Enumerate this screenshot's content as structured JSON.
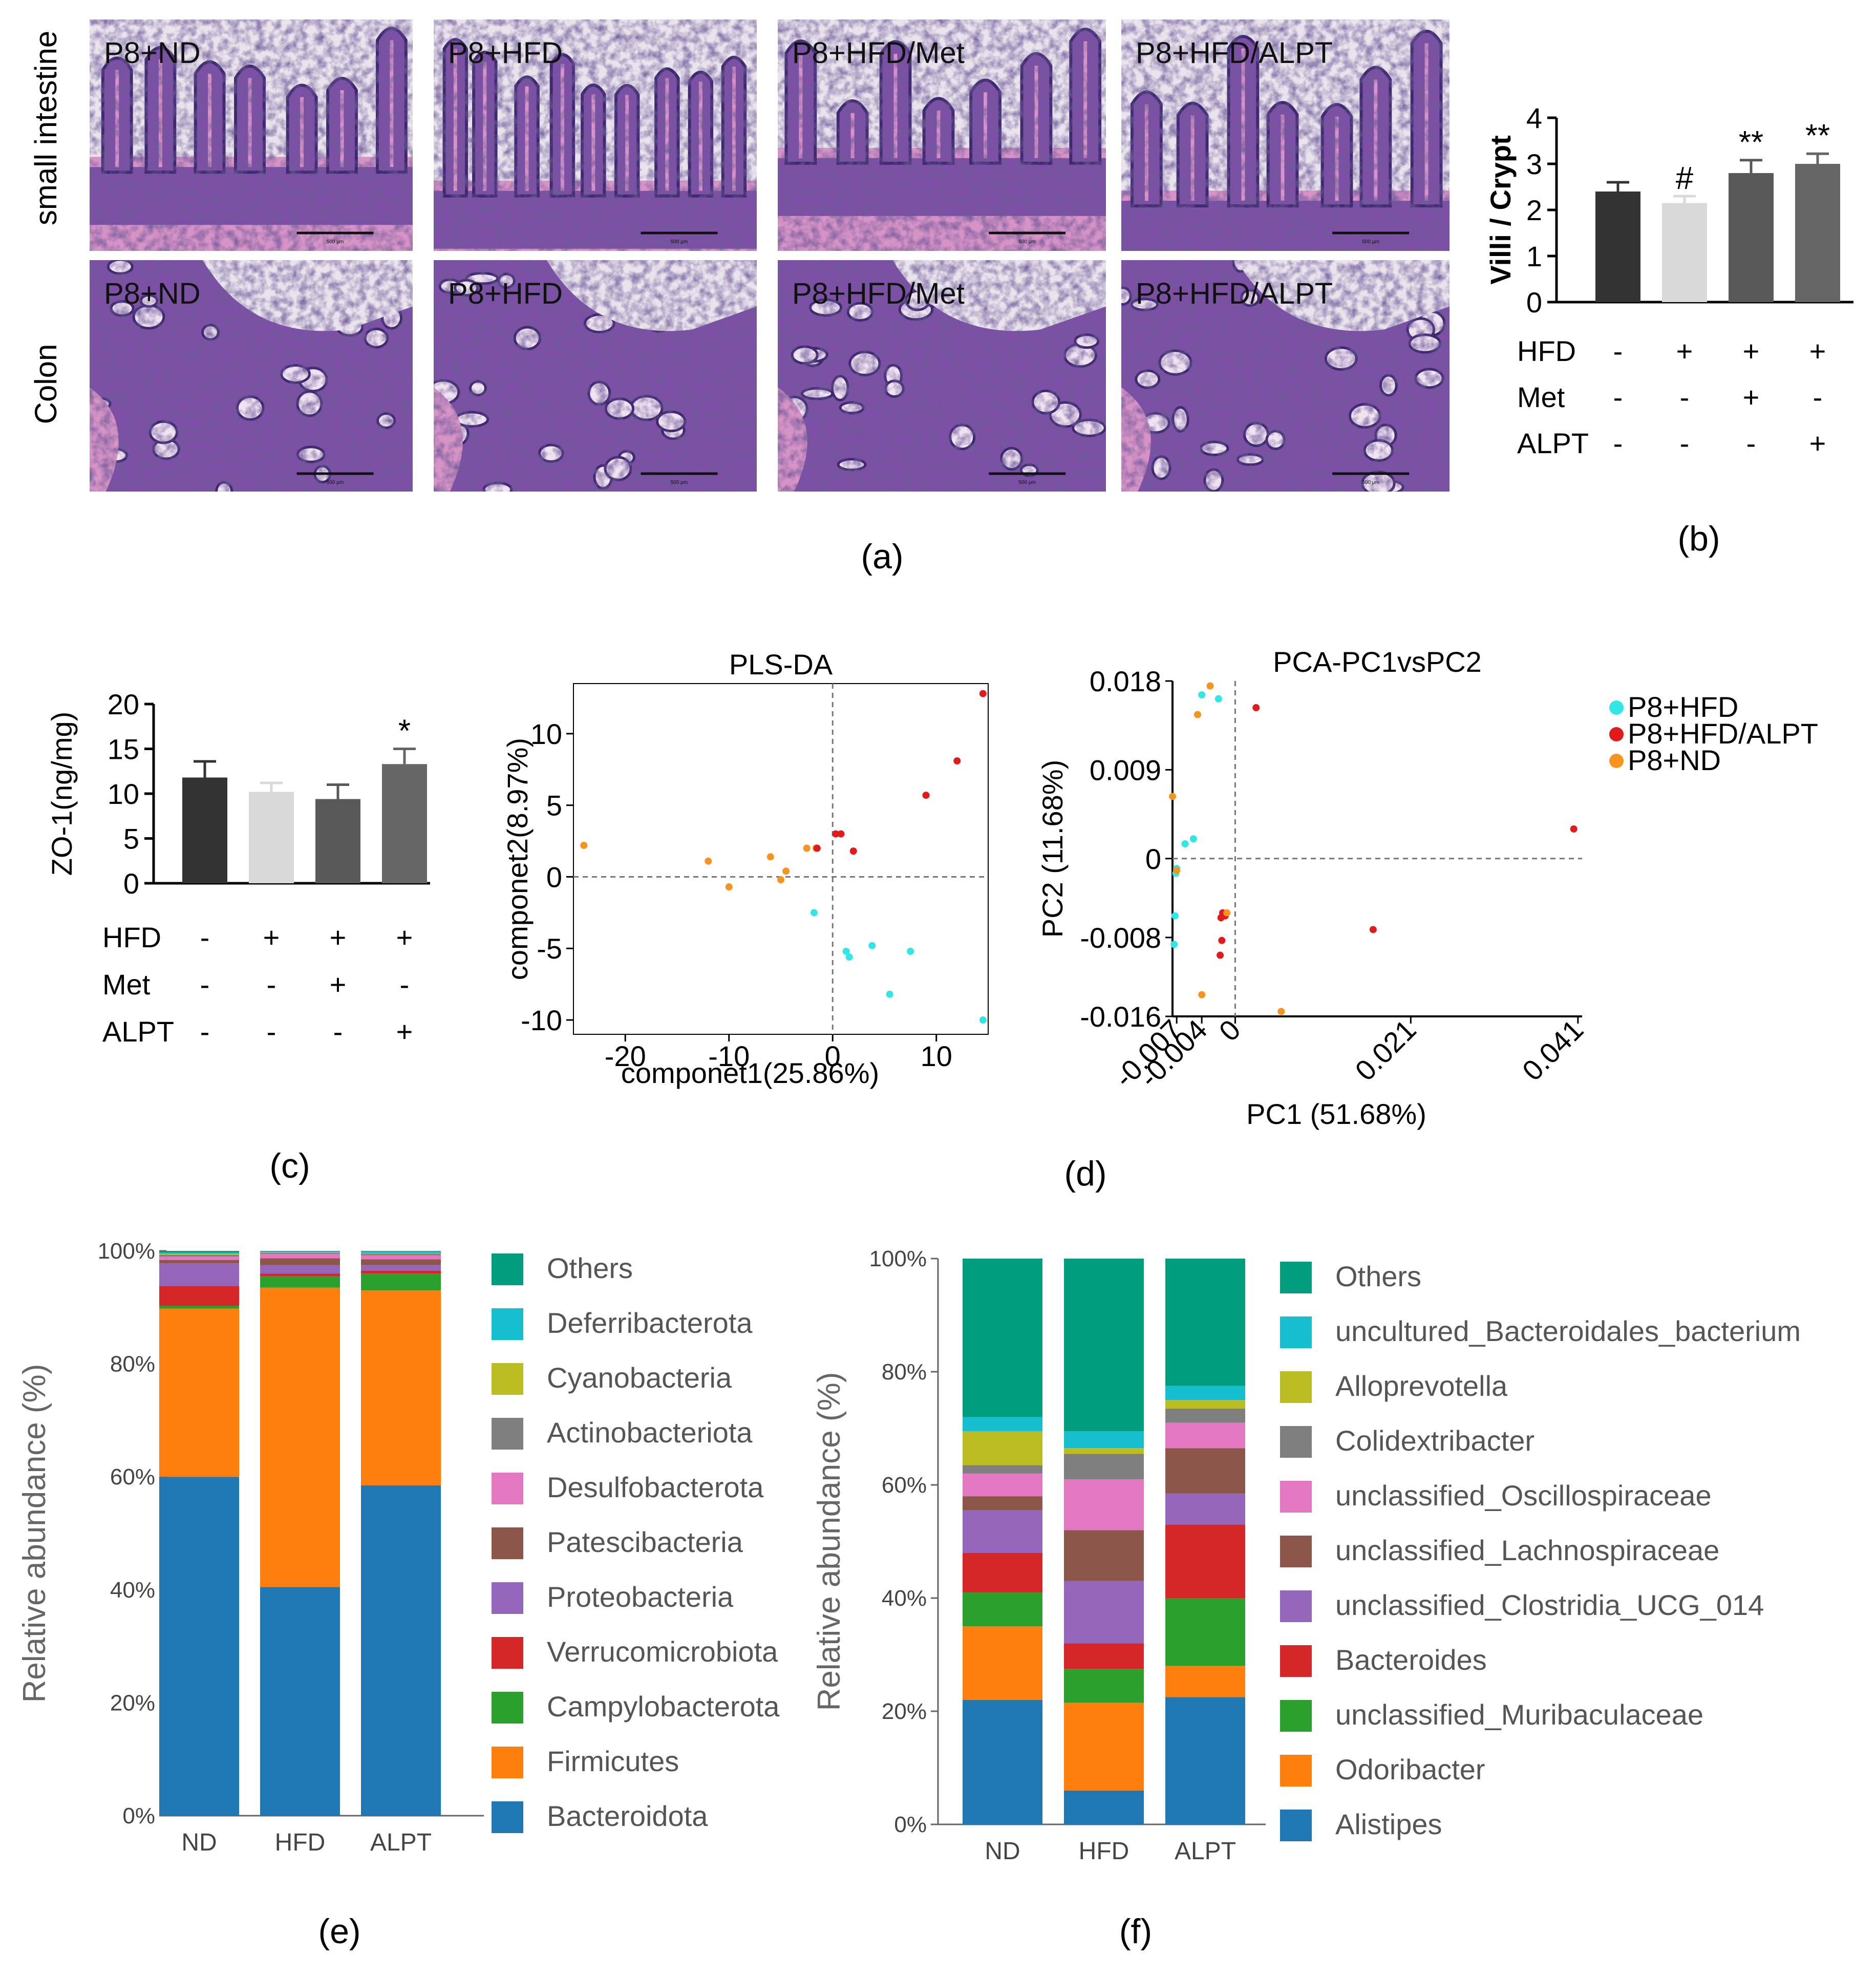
{
  "panel_labels": [
    "(a)",
    "(b)",
    "(c)",
    "(d)",
    "(e)",
    "(f)"
  ],
  "histology": {
    "rows": [
      "small intestine",
      "Colon"
    ],
    "columns": [
      "P8+ND",
      "P8+HFD",
      "P8+HFD/Met",
      "P8+HFD/ALPT"
    ],
    "scale_bar_text": "500 μm",
    "colors": {
      "tissue": "#7d4fa6",
      "nuclei": "#3d2a6e",
      "eosin": "#d693c6",
      "background": "#e9e4ec"
    }
  },
  "treatments": {
    "rows": [
      {
        "name": "HFD",
        "values": [
          "-",
          "+",
          "+",
          "+"
        ]
      },
      {
        "name": "Met",
        "values": [
          "-",
          "-",
          "+",
          "-"
        ]
      },
      {
        "name": "ALPT",
        "values": [
          "-",
          "-",
          "-",
          "+"
        ]
      }
    ]
  },
  "chart_data": [
    {
      "id": "b",
      "type": "bar",
      "ylabel": "Villi / Crypt",
      "ylim": [
        0,
        4
      ],
      "yticks": [
        "0",
        "1",
        "2",
        "3",
        "4"
      ],
      "values": [
        2.4,
        2.15,
        2.8,
        3.0
      ],
      "errors": [
        0.2,
        0.15,
        0.28,
        0.22
      ],
      "significance": [
        "",
        "#",
        "**",
        "**"
      ],
      "colors": [
        "#333333",
        "#d9d9d9",
        "#595959",
        "#666666"
      ]
    },
    {
      "id": "c",
      "type": "bar",
      "ylabel": "ZO-1(ng/mg)",
      "ylim": [
        0,
        20
      ],
      "yticks": [
        "0",
        "5",
        "10",
        "15",
        "20"
      ],
      "values": [
        11.8,
        10.2,
        9.4,
        13.3
      ],
      "errors": [
        1.8,
        1.0,
        1.6,
        1.7
      ],
      "significance": [
        "",
        "",
        "",
        "*"
      ],
      "colors": [
        "#333333",
        "#d9d9d9",
        "#595959",
        "#666666"
      ]
    },
    {
      "id": "d1",
      "type": "scatter",
      "title": "PLS-DA",
      "xlabel": "componet1(25.86%)",
      "ylabel": "componet2(8.97%)",
      "xlim": [
        -25,
        15
      ],
      "ylim": [
        -11,
        13.5
      ],
      "xticks": [
        -20,
        -10,
        0,
        10
      ],
      "yticks": [
        -10,
        -5,
        0,
        5,
        10
      ],
      "groups": [
        {
          "color": "#f7931e",
          "points": [
            [
              -24,
              2.2
            ],
            [
              -12,
              1.1
            ],
            [
              -10,
              -0.7
            ],
            [
              -6,
              1.4
            ],
            [
              -5,
              -0.2
            ],
            [
              -4.5,
              0.4
            ],
            [
              -2.5,
              2
            ],
            [
              -1.6,
              2
            ]
          ]
        },
        {
          "color": "#e31a1c",
          "points": [
            [
              0.3,
              3
            ],
            [
              0.8,
              3
            ],
            [
              2,
              1.8
            ],
            [
              9,
              5.7
            ],
            [
              12,
              8.1
            ],
            [
              14.5,
              12.8
            ],
            [
              -1.5,
              2
            ]
          ]
        },
        {
          "color": "#33e6e6",
          "points": [
            [
              -1.8,
              -2.5
            ],
            [
              1.3,
              -5.2
            ],
            [
              1.6,
              -5.6
            ],
            [
              3.8,
              -4.8
            ],
            [
              7.5,
              -5.2
            ],
            [
              5.5,
              -8.2
            ],
            [
              14.5,
              -10
            ]
          ]
        }
      ]
    },
    {
      "id": "d2",
      "type": "scatter",
      "title": "PCA-PC1vsPC2",
      "xlabel": "PC1 (51.68%)",
      "ylabel": "PC2 (11.68%)",
      "xlim": [
        -0.0075,
        0.0415
      ],
      "ylim": [
        -0.016,
        0.018
      ],
      "xticks": [
        -0.007,
        -0.004,
        0,
        0.021,
        0.041
      ],
      "xtick_labels": [
        "-0.007",
        "-0.004",
        "0",
        "0.021",
        "0.041"
      ],
      "yticks": [
        0.018,
        0.009,
        0,
        -0.008,
        -0.016
      ],
      "ytick_labels": [
        "0.018",
        "0.009",
        "0",
        "-0.008",
        "-0.016"
      ],
      "legend": [
        "P8+HFD",
        "P8+HFD/ALPT",
        "P8+ND"
      ],
      "groups": [
        {
          "name": "P8+HFD",
          "color": "#33e6e6",
          "points": [
            [
              -0.004,
              0.0166
            ],
            [
              -0.002,
              0.0162
            ],
            [
              -0.006,
              0.0015
            ],
            [
              -0.005,
              0.002
            ],
            [
              -0.007,
              -0.001
            ],
            [
              -0.0071,
              -0.0015
            ],
            [
              -0.0072,
              -0.0058
            ],
            [
              -0.0073,
              -0.0087
            ]
          ]
        },
        {
          "name": "P8+HFD/ALPT",
          "color": "#e31a1c",
          "points": [
            [
              0.0025,
              0.0153
            ],
            [
              0.0405,
              0.003
            ],
            [
              0.0165,
              -0.0072
            ],
            [
              -0.0015,
              -0.0055
            ],
            [
              -0.0012,
              -0.0058
            ],
            [
              -0.0017,
              -0.006
            ],
            [
              -0.0016,
              -0.0083
            ],
            [
              -0.0018,
              -0.0098
            ]
          ]
        },
        {
          "name": "P8+ND",
          "color": "#f7931e",
          "points": [
            [
              -0.003,
              0.0175
            ],
            [
              -0.0045,
              0.0146
            ],
            [
              -0.0075,
              0.0063
            ],
            [
              -0.001,
              -0.0055
            ],
            [
              -0.004,
              -0.0138
            ],
            [
              0.0055,
              -0.0155
            ],
            [
              -0.007,
              -0.0012
            ]
          ]
        }
      ]
    },
    {
      "id": "e",
      "type": "stacked_bar",
      "ylabel": "Relative abundance (%)",
      "yticks": [
        "0%",
        "20%",
        "40%",
        "60%",
        "80%",
        "100%"
      ],
      "categories": [
        "ND",
        "HFD",
        "ALPT"
      ],
      "series": [
        {
          "name": "Bacteroidota",
          "color": "#1f77b4",
          "values": [
            60,
            40.5,
            58.5
          ]
        },
        {
          "name": "Firmicutes",
          "color": "#ff7f0e",
          "values": [
            29.8,
            53,
            34.5
          ]
        },
        {
          "name": "Campylobacterota",
          "color": "#2ca02c",
          "values": [
            0.5,
            2,
            3
          ]
        },
        {
          "name": "Verrucomicrobiota",
          "color": "#d62728",
          "values": [
            3.5,
            0.5,
            0.5
          ]
        },
        {
          "name": "Proteobacteria",
          "color": "#9467bd",
          "values": [
            4,
            1.5,
            1
          ]
        },
        {
          "name": "Patescibacteria",
          "color": "#8c564b",
          "values": [
            0.6,
            1.2,
            1
          ]
        },
        {
          "name": "Desulfobacterota",
          "color": "#e377c2",
          "values": [
            0.6,
            0.8,
            0.7
          ]
        },
        {
          "name": "Actinobacteriota",
          "color": "#7f7f7f",
          "values": [
            0.3,
            0.2,
            0.3
          ]
        },
        {
          "name": "Cyanobacteria",
          "color": "#bcbd22",
          "values": [
            0.2,
            0.1,
            0.1
          ]
        },
        {
          "name": "Deferribacterota",
          "color": "#17becf",
          "values": [
            0.2,
            0.1,
            0.3
          ]
        },
        {
          "name": "Others",
          "color": "#009e7f",
          "values": [
            0.3,
            0.1,
            0.1
          ]
        }
      ]
    },
    {
      "id": "f",
      "type": "stacked_bar",
      "ylabel": "Relative abundance (%)",
      "yticks": [
        "0%",
        "20%",
        "40%",
        "60%",
        "80%",
        "100%"
      ],
      "categories": [
        "ND",
        "HFD",
        "ALPT"
      ],
      "series": [
        {
          "name": "Alistipes",
          "color": "#1f77b4",
          "values": [
            22,
            6,
            22.5
          ]
        },
        {
          "name": "Odoribacter",
          "color": "#ff7f0e",
          "values": [
            13,
            15.5,
            5.5
          ]
        },
        {
          "name": "unclassified_Muribaculaceae",
          "color": "#2ca02c",
          "values": [
            6,
            6,
            12
          ]
        },
        {
          "name": "Bacteroides",
          "color": "#d62728",
          "values": [
            7,
            4.5,
            13
          ]
        },
        {
          "name": "unclassified_Clostridia_UCG_014",
          "color": "#9467bd",
          "values": [
            7.5,
            11,
            5.5
          ]
        },
        {
          "name": "unclassified_Lachnospiraceae",
          "color": "#8c564b",
          "values": [
            2.5,
            9,
            8
          ]
        },
        {
          "name": "unclassified_Oscillospiraceae",
          "color": "#e377c2",
          "values": [
            4,
            9,
            4.5
          ]
        },
        {
          "name": "Colidextribacter",
          "color": "#7f7f7f",
          "values": [
            1.5,
            4.5,
            2.5
          ]
        },
        {
          "name": "Alloprevotella",
          "color": "#bcbd22",
          "values": [
            6,
            1,
            1.5
          ]
        },
        {
          "name": "uncultured_Bacteroidales_bacterium",
          "color": "#17becf",
          "values": [
            2.5,
            3,
            2.5
          ]
        },
        {
          "name": "Others",
          "color": "#009e7f",
          "values": [
            28,
            30.5,
            22.5
          ]
        }
      ]
    }
  ]
}
